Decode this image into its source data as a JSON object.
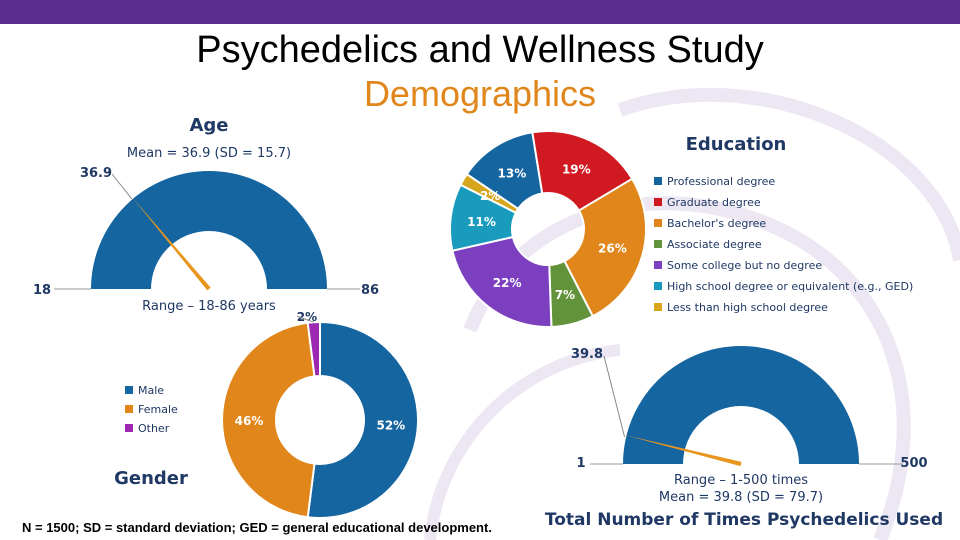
{
  "header": {
    "title": "Psychedelics and Wellness Study",
    "subtitle": "Demographics"
  },
  "colors": {
    "bar": "#5b2d91",
    "title_accent": "#e0861a",
    "navy": "#1f3864",
    "gauge": "#1565a0",
    "needle": "#e8961e"
  },
  "footnote": "N = 1500; SD = standard deviation; GED = general educational development.",
  "chart_data": [
    {
      "type": "gauge",
      "title": "Age",
      "stat": "Mean = 36.9 (SD = 15.7)",
      "range_label": "Range – 18-86 years",
      "min": 18,
      "max": 86,
      "value": 36.9,
      "min_label": "18",
      "max_label": "86",
      "value_label": "36.9"
    },
    {
      "type": "pie",
      "title": "Education",
      "donut": true,
      "legend_position": "right",
      "slices": [
        {
          "label": "Professional degree",
          "value": 13,
          "display": "13%",
          "color": "#1565a0"
        },
        {
          "label": "Graduate degree",
          "value": 19,
          "display": "19%",
          "color": "#d01920"
        },
        {
          "label": "Bachelor's degree",
          "value": 26,
          "display": "26%",
          "color": "#e0861a"
        },
        {
          "label": "Associate degree",
          "value": 7,
          "display": "7%",
          "color": "#62923a"
        },
        {
          "label": "Some college but no degree",
          "value": 22,
          "display": "22%",
          "color": "#7b3fbf"
        },
        {
          "label": "High school degree or equivalent (e.g., GED)",
          "value": 11,
          "display": "11%",
          "color": "#189bbd"
        },
        {
          "label": "Less than high school degree",
          "value": 2,
          "display": "2%",
          "color": "#d6a51c"
        }
      ]
    },
    {
      "type": "pie",
      "title": "Gender",
      "donut": true,
      "legend_position": "left",
      "slices": [
        {
          "label": "Male",
          "value": 52,
          "display": "52%",
          "color": "#1565a0"
        },
        {
          "label": "Female",
          "value": 46,
          "display": "46%",
          "color": "#e0861a"
        },
        {
          "label": "Other",
          "value": 2,
          "display": "2%",
          "color": "#9c27b0"
        }
      ]
    },
    {
      "type": "gauge",
      "title": "Total Number of Times Psychedelics Used",
      "stat": "Mean = 39.8 (SD = 79.7)",
      "range_label": "Range – 1-500 times",
      "min": 1,
      "max": 500,
      "value": 39.8,
      "min_label": "1",
      "max_label": "500",
      "value_label": "39.8"
    }
  ]
}
